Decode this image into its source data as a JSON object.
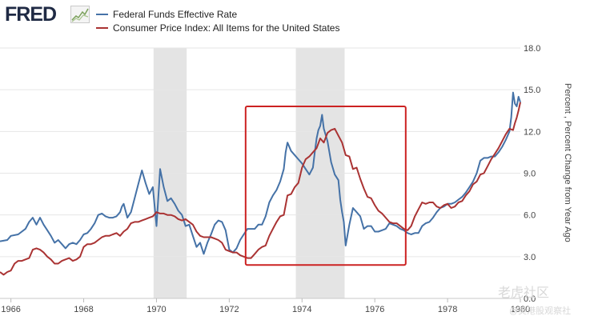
{
  "brand": {
    "logo_text": "FRED"
  },
  "watermark": {
    "line1": "老虎社区",
    "line2": "@美港股观察社"
  },
  "chart_data": {
    "type": "line",
    "title": "",
    "ylabel": "Percent , Percent Change from Year Ago",
    "ylim": [
      0,
      18
    ],
    "yticks": [
      0.0,
      3.0,
      6.0,
      9.0,
      12.0,
      15.0,
      18.0
    ],
    "ytick_labels": [
      "0.0",
      "3.0",
      "6.0",
      "9.0",
      "12.0",
      "15.0",
      "18.0"
    ],
    "xlim": [
      1965.7,
      1980.0
    ],
    "xticks": [
      1966,
      1968,
      1970,
      1972,
      1974,
      1976,
      1978,
      1980
    ],
    "xtick_labels": [
      "1966",
      "1968",
      "1970",
      "1972",
      "1974",
      "1976",
      "1978",
      "1980"
    ],
    "recessions": [
      [
        1969.92,
        1970.83
      ],
      [
        1973.83,
        1975.17
      ]
    ],
    "highlight_box": {
      "x0": 1972.45,
      "x1": 1976.85,
      "y0": 2.4,
      "y1": 13.8,
      "color": "#cc2222"
    },
    "legend_position": "top-left",
    "series": [
      {
        "name": "Federal Funds Effective Rate",
        "color": "#4572a7",
        "points": [
          [
            1965.7,
            4.1
          ],
          [
            1965.9,
            4.2
          ],
          [
            1966.0,
            4.5
          ],
          [
            1966.2,
            4.6
          ],
          [
            1966.4,
            5.0
          ],
          [
            1966.5,
            5.5
          ],
          [
            1966.6,
            5.8
          ],
          [
            1966.7,
            5.3
          ],
          [
            1966.8,
            5.8
          ],
          [
            1966.9,
            5.3
          ],
          [
            1967.0,
            4.9
          ],
          [
            1967.1,
            4.5
          ],
          [
            1967.2,
            4.0
          ],
          [
            1967.3,
            4.2
          ],
          [
            1967.4,
            3.9
          ],
          [
            1967.5,
            3.6
          ],
          [
            1967.6,
            3.9
          ],
          [
            1967.7,
            4.0
          ],
          [
            1967.8,
            3.9
          ],
          [
            1967.9,
            4.2
          ],
          [
            1968.0,
            4.6
          ],
          [
            1968.1,
            4.7
          ],
          [
            1968.2,
            5.0
          ],
          [
            1968.3,
            5.4
          ],
          [
            1968.4,
            6.0
          ],
          [
            1968.5,
            6.1
          ],
          [
            1968.6,
            5.9
          ],
          [
            1968.7,
            5.8
          ],
          [
            1968.8,
            5.8
          ],
          [
            1968.9,
            5.9
          ],
          [
            1969.0,
            6.2
          ],
          [
            1969.05,
            6.6
          ],
          [
            1969.1,
            6.8
          ],
          [
            1969.2,
            5.8
          ],
          [
            1969.3,
            6.2
          ],
          [
            1969.4,
            7.2
          ],
          [
            1969.5,
            8.2
          ],
          [
            1969.6,
            9.2
          ],
          [
            1969.7,
            8.3
          ],
          [
            1969.8,
            7.5
          ],
          [
            1969.9,
            8.0
          ],
          [
            1970.0,
            5.2
          ],
          [
            1970.1,
            9.3
          ],
          [
            1970.2,
            8.0
          ],
          [
            1970.3,
            7.0
          ],
          [
            1970.4,
            7.2
          ],
          [
            1970.5,
            6.8
          ],
          [
            1970.6,
            6.3
          ],
          [
            1970.7,
            6.0
          ],
          [
            1970.8,
            5.2
          ],
          [
            1970.9,
            5.3
          ],
          [
            1971.0,
            4.5
          ],
          [
            1971.1,
            3.7
          ],
          [
            1971.2,
            4.0
          ],
          [
            1971.3,
            3.2
          ],
          [
            1971.4,
            4.0
          ],
          [
            1971.5,
            4.6
          ],
          [
            1971.6,
            5.3
          ],
          [
            1971.7,
            5.6
          ],
          [
            1971.8,
            5.5
          ],
          [
            1971.9,
            4.9
          ],
          [
            1972.0,
            3.5
          ],
          [
            1972.1,
            3.3
          ],
          [
            1972.2,
            3.6
          ],
          [
            1972.3,
            4.2
          ],
          [
            1972.4,
            4.6
          ],
          [
            1972.5,
            5.0
          ],
          [
            1972.6,
            5.0
          ],
          [
            1972.7,
            5.0
          ],
          [
            1972.8,
            5.3
          ],
          [
            1972.9,
            5.3
          ],
          [
            1973.0,
            5.9
          ],
          [
            1973.1,
            6.9
          ],
          [
            1973.2,
            7.4
          ],
          [
            1973.3,
            7.8
          ],
          [
            1973.4,
            8.4
          ],
          [
            1973.5,
            9.3
          ],
          [
            1973.55,
            10.5
          ],
          [
            1973.6,
            11.2
          ],
          [
            1973.7,
            10.6
          ],
          [
            1973.8,
            10.3
          ],
          [
            1973.9,
            10.0
          ],
          [
            1974.0,
            9.7
          ],
          [
            1974.1,
            9.3
          ],
          [
            1974.2,
            8.9
          ],
          [
            1974.3,
            9.4
          ],
          [
            1974.35,
            10.5
          ],
          [
            1974.4,
            11.5
          ],
          [
            1974.45,
            12.1
          ],
          [
            1974.5,
            12.4
          ],
          [
            1974.55,
            13.2
          ],
          [
            1974.6,
            12.2
          ],
          [
            1974.7,
            11.3
          ],
          [
            1974.8,
            9.8
          ],
          [
            1974.9,
            8.9
          ],
          [
            1975.0,
            8.5
          ],
          [
            1975.05,
            7.1
          ],
          [
            1975.1,
            6.2
          ],
          [
            1975.15,
            5.5
          ],
          [
            1975.2,
            3.8
          ],
          [
            1975.3,
            5.3
          ],
          [
            1975.4,
            6.5
          ],
          [
            1975.5,
            6.2
          ],
          [
            1975.6,
            5.9
          ],
          [
            1975.7,
            5.0
          ],
          [
            1975.8,
            5.2
          ],
          [
            1975.9,
            5.2
          ],
          [
            1976.0,
            4.8
          ],
          [
            1976.1,
            4.8
          ],
          [
            1976.2,
            4.9
          ],
          [
            1976.3,
            5.0
          ],
          [
            1976.4,
            5.4
          ],
          [
            1976.5,
            5.3
          ],
          [
            1976.6,
            5.2
          ],
          [
            1976.7,
            5.0
          ],
          [
            1976.8,
            4.9
          ],
          [
            1976.9,
            4.7
          ],
          [
            1977.0,
            4.6
          ],
          [
            1977.1,
            4.7
          ],
          [
            1977.2,
            4.7
          ],
          [
            1977.3,
            5.2
          ],
          [
            1977.4,
            5.4
          ],
          [
            1977.5,
            5.5
          ],
          [
            1977.6,
            5.8
          ],
          [
            1977.7,
            6.2
          ],
          [
            1977.8,
            6.5
          ],
          [
            1977.9,
            6.6
          ],
          [
            1978.0,
            6.8
          ],
          [
            1978.1,
            6.8
          ],
          [
            1978.2,
            6.9
          ],
          [
            1978.3,
            7.1
          ],
          [
            1978.4,
            7.3
          ],
          [
            1978.5,
            7.6
          ],
          [
            1978.6,
            8.0
          ],
          [
            1978.7,
            8.4
          ],
          [
            1978.8,
            9.0
          ],
          [
            1978.9,
            9.9
          ],
          [
            1979.0,
            10.1
          ],
          [
            1979.1,
            10.1
          ],
          [
            1979.2,
            10.2
          ],
          [
            1979.3,
            10.2
          ],
          [
            1979.4,
            10.5
          ],
          [
            1979.5,
            10.9
          ],
          [
            1979.6,
            11.4
          ],
          [
            1979.7,
            12.0
          ],
          [
            1979.75,
            13.0
          ],
          [
            1979.8,
            14.8
          ],
          [
            1979.85,
            14.0
          ],
          [
            1979.9,
            13.8
          ],
          [
            1979.95,
            14.5
          ],
          [
            1980.0,
            14.1
          ]
        ]
      },
      {
        "name": "Consumer Price Index: All Items for the United States",
        "color": "#aa3333",
        "points": [
          [
            1965.7,
            1.9
          ],
          [
            1965.8,
            1.7
          ],
          [
            1965.9,
            1.9
          ],
          [
            1966.0,
            2.0
          ],
          [
            1966.1,
            2.5
          ],
          [
            1966.2,
            2.7
          ],
          [
            1966.3,
            2.7
          ],
          [
            1966.4,
            2.8
          ],
          [
            1966.5,
            2.9
          ],
          [
            1966.6,
            3.5
          ],
          [
            1966.7,
            3.6
          ],
          [
            1966.8,
            3.5
          ],
          [
            1966.9,
            3.3
          ],
          [
            1967.0,
            3.0
          ],
          [
            1967.1,
            2.8
          ],
          [
            1967.2,
            2.5
          ],
          [
            1967.3,
            2.5
          ],
          [
            1967.4,
            2.7
          ],
          [
            1967.5,
            2.8
          ],
          [
            1967.6,
            2.9
          ],
          [
            1967.7,
            2.7
          ],
          [
            1967.8,
            2.8
          ],
          [
            1967.9,
            3.0
          ],
          [
            1968.0,
            3.7
          ],
          [
            1968.1,
            3.9
          ],
          [
            1968.2,
            3.9
          ],
          [
            1968.3,
            4.0
          ],
          [
            1968.4,
            4.2
          ],
          [
            1968.5,
            4.4
          ],
          [
            1968.6,
            4.5
          ],
          [
            1968.7,
            4.5
          ],
          [
            1968.8,
            4.6
          ],
          [
            1968.9,
            4.7
          ],
          [
            1969.0,
            4.5
          ],
          [
            1969.1,
            4.8
          ],
          [
            1969.2,
            5.0
          ],
          [
            1969.3,
            5.4
          ],
          [
            1969.4,
            5.5
          ],
          [
            1969.5,
            5.5
          ],
          [
            1969.6,
            5.6
          ],
          [
            1969.7,
            5.7
          ],
          [
            1969.8,
            5.8
          ],
          [
            1969.9,
            5.9
          ],
          [
            1970.0,
            6.2
          ],
          [
            1970.1,
            6.1
          ],
          [
            1970.2,
            6.1
          ],
          [
            1970.3,
            6.0
          ],
          [
            1970.4,
            6.0
          ],
          [
            1970.5,
            5.9
          ],
          [
            1970.6,
            5.7
          ],
          [
            1970.7,
            5.6
          ],
          [
            1970.8,
            5.7
          ],
          [
            1970.9,
            5.5
          ],
          [
            1971.0,
            5.3
          ],
          [
            1971.1,
            4.8
          ],
          [
            1971.2,
            4.5
          ],
          [
            1971.3,
            4.4
          ],
          [
            1971.4,
            4.4
          ],
          [
            1971.5,
            4.4
          ],
          [
            1971.6,
            4.3
          ],
          [
            1971.7,
            4.2
          ],
          [
            1971.8,
            4.0
          ],
          [
            1971.9,
            3.5
          ],
          [
            1972.0,
            3.4
          ],
          [
            1972.1,
            3.3
          ],
          [
            1972.2,
            3.3
          ],
          [
            1972.3,
            3.1
          ],
          [
            1972.4,
            3.0
          ],
          [
            1972.5,
            2.9
          ],
          [
            1972.6,
            2.9
          ],
          [
            1972.7,
            3.2
          ],
          [
            1972.8,
            3.5
          ],
          [
            1972.9,
            3.7
          ],
          [
            1973.0,
            3.8
          ],
          [
            1973.1,
            4.5
          ],
          [
            1973.2,
            5.0
          ],
          [
            1973.3,
            5.5
          ],
          [
            1973.4,
            5.9
          ],
          [
            1973.5,
            6.0
          ],
          [
            1973.6,
            7.4
          ],
          [
            1973.7,
            7.5
          ],
          [
            1973.8,
            8.0
          ],
          [
            1973.9,
            8.3
          ],
          [
            1974.0,
            9.4
          ],
          [
            1974.1,
            10.0
          ],
          [
            1974.2,
            10.2
          ],
          [
            1974.3,
            10.5
          ],
          [
            1974.4,
            10.8
          ],
          [
            1974.5,
            11.5
          ],
          [
            1974.6,
            11.2
          ],
          [
            1974.7,
            11.9
          ],
          [
            1974.8,
            12.1
          ],
          [
            1974.9,
            12.2
          ],
          [
            1975.0,
            11.7
          ],
          [
            1975.1,
            11.2
          ],
          [
            1975.2,
            10.3
          ],
          [
            1975.3,
            10.2
          ],
          [
            1975.4,
            9.3
          ],
          [
            1975.5,
            9.4
          ],
          [
            1975.6,
            8.6
          ],
          [
            1975.7,
            7.9
          ],
          [
            1975.8,
            7.3
          ],
          [
            1975.9,
            7.2
          ],
          [
            1976.0,
            6.7
          ],
          [
            1976.1,
            6.3
          ],
          [
            1976.2,
            6.1
          ],
          [
            1976.3,
            5.8
          ],
          [
            1976.4,
            5.5
          ],
          [
            1976.5,
            5.4
          ],
          [
            1976.6,
            5.4
          ],
          [
            1976.7,
            5.2
          ],
          [
            1976.8,
            5.0
          ],
          [
            1976.9,
            4.9
          ],
          [
            1977.0,
            5.2
          ],
          [
            1977.1,
            5.9
          ],
          [
            1977.2,
            6.4
          ],
          [
            1977.3,
            6.9
          ],
          [
            1977.4,
            6.8
          ],
          [
            1977.5,
            6.9
          ],
          [
            1977.6,
            6.9
          ],
          [
            1977.7,
            6.6
          ],
          [
            1977.8,
            6.5
          ],
          [
            1977.9,
            6.7
          ],
          [
            1978.0,
            6.8
          ],
          [
            1978.1,
            6.5
          ],
          [
            1978.2,
            6.6
          ],
          [
            1978.3,
            6.9
          ],
          [
            1978.4,
            7.0
          ],
          [
            1978.5,
            7.4
          ],
          [
            1978.6,
            7.7
          ],
          [
            1978.7,
            8.2
          ],
          [
            1978.8,
            8.4
          ],
          [
            1978.9,
            8.9
          ],
          [
            1979.0,
            9.0
          ],
          [
            1979.1,
            9.5
          ],
          [
            1979.2,
            10.0
          ],
          [
            1979.3,
            10.4
          ],
          [
            1979.4,
            10.8
          ],
          [
            1979.5,
            11.3
          ],
          [
            1979.6,
            11.8
          ],
          [
            1979.7,
            12.2
          ],
          [
            1979.8,
            12.1
          ],
          [
            1979.85,
            12.6
          ],
          [
            1979.9,
            13.0
          ],
          [
            1979.95,
            13.5
          ],
          [
            1980.0,
            14.1
          ]
        ]
      }
    ]
  }
}
